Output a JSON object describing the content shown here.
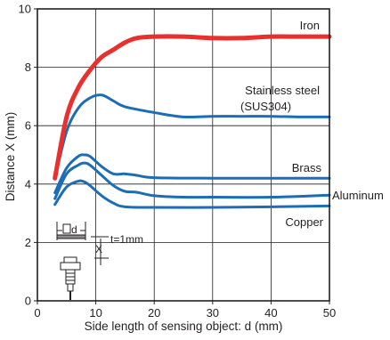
{
  "chart_data": {
    "type": "line",
    "xlabel": "Side length of sensing object: d (mm)",
    "ylabel": "Distance X (mm)",
    "xlim": [
      0,
      50
    ],
    "ylim": [
      0,
      10
    ],
    "xticks": [
      0,
      10,
      20,
      30,
      40,
      50
    ],
    "yticks": [
      0,
      2,
      4,
      6,
      8,
      10
    ],
    "grid": true,
    "series": [
      {
        "name": "Iron",
        "color": "#e8312f",
        "points": [
          [
            3,
            4.2
          ],
          [
            5,
            6.3
          ],
          [
            7,
            7.3
          ],
          [
            9,
            7.9
          ],
          [
            11,
            8.35
          ],
          [
            13,
            8.6
          ],
          [
            15,
            8.85
          ],
          [
            17,
            9.0
          ],
          [
            20,
            9.05
          ],
          [
            25,
            9.05
          ],
          [
            30,
            9.0
          ],
          [
            35,
            9.0
          ],
          [
            40,
            9.05
          ],
          [
            45,
            9.05
          ],
          [
            50,
            9.05
          ]
        ]
      },
      {
        "name": "Stainless steel (SUS304)",
        "color": "#1c6db5",
        "points": [
          [
            3,
            4.2
          ],
          [
            5,
            5.8
          ],
          [
            7,
            6.6
          ],
          [
            9,
            6.95
          ],
          [
            11,
            7.05
          ],
          [
            13,
            6.85
          ],
          [
            15,
            6.65
          ],
          [
            20,
            6.45
          ],
          [
            25,
            6.3
          ],
          [
            30,
            6.32
          ],
          [
            35,
            6.32
          ],
          [
            40,
            6.32
          ],
          [
            45,
            6.3
          ],
          [
            50,
            6.3
          ]
        ]
      },
      {
        "name": "Brass",
        "color": "#1c6db5",
        "points": [
          [
            3,
            3.7
          ],
          [
            5,
            4.55
          ],
          [
            7,
            4.95
          ],
          [
            8,
            5.0
          ],
          [
            9,
            4.95
          ],
          [
            11,
            4.6
          ],
          [
            13,
            4.35
          ],
          [
            15,
            4.35
          ],
          [
            17,
            4.3
          ],
          [
            20,
            4.22
          ],
          [
            30,
            4.2
          ],
          [
            40,
            4.2
          ],
          [
            50,
            4.2
          ]
        ]
      },
      {
        "name": "Aluminum",
        "color": "#1c6db5",
        "points": [
          [
            3,
            3.5
          ],
          [
            5,
            4.35
          ],
          [
            7,
            4.65
          ],
          [
            8,
            4.72
          ],
          [
            9,
            4.65
          ],
          [
            11,
            4.3
          ],
          [
            13,
            3.95
          ],
          [
            15,
            3.75
          ],
          [
            17,
            3.72
          ],
          [
            20,
            3.6
          ],
          [
            25,
            3.55
          ],
          [
            30,
            3.55
          ],
          [
            40,
            3.55
          ],
          [
            50,
            3.62
          ]
        ]
      },
      {
        "name": "Copper",
        "color": "#1c6db5",
        "points": [
          [
            3,
            3.3
          ],
          [
            5,
            3.9
          ],
          [
            7,
            4.1
          ],
          [
            8,
            4.08
          ],
          [
            9,
            3.95
          ],
          [
            11,
            3.6
          ],
          [
            13,
            3.35
          ],
          [
            15,
            3.22
          ],
          [
            20,
            3.2
          ],
          [
            30,
            3.2
          ],
          [
            40,
            3.22
          ],
          [
            50,
            3.25
          ]
        ]
      }
    ],
    "annotations": {
      "inset_d": "d",
      "inset_x": "X",
      "inset_t": "t=1mm"
    }
  }
}
